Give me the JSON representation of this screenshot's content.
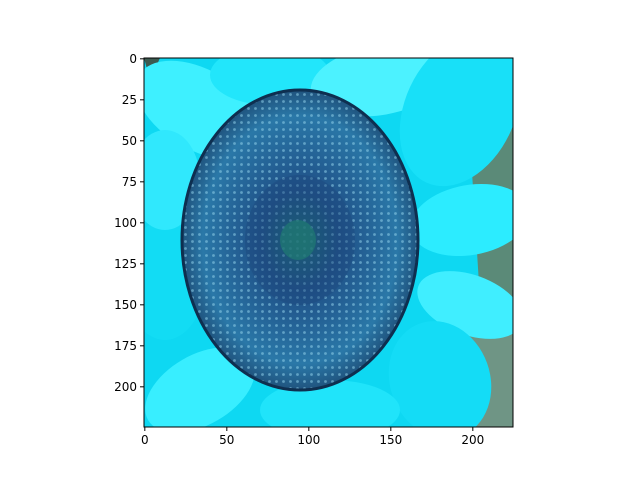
{
  "figure": {
    "background": "#ffffff",
    "axes_color": "#000000"
  },
  "image": {
    "subject": "sunflower-head-color-inverted",
    "colors": {
      "petal": "#12e4f8",
      "petal_light": "#4cf2ff",
      "petal_dark": "#00c4e2",
      "disk_outer": "#2a78a8",
      "disk_mid": "#1f4f86",
      "disk_center": "#1b6e6a",
      "background_leaf": "#5b8a78"
    }
  },
  "chart_data": {
    "type": "image",
    "xlabel": "",
    "ylabel": "",
    "xlim": [
      -0.5,
      224.5
    ],
    "ylim": [
      224.5,
      -0.5
    ],
    "xticks": [
      0,
      50,
      100,
      150,
      200
    ],
    "yticks": [
      0,
      25,
      50,
      75,
      100,
      125,
      150,
      175,
      200
    ],
    "grid": false
  }
}
